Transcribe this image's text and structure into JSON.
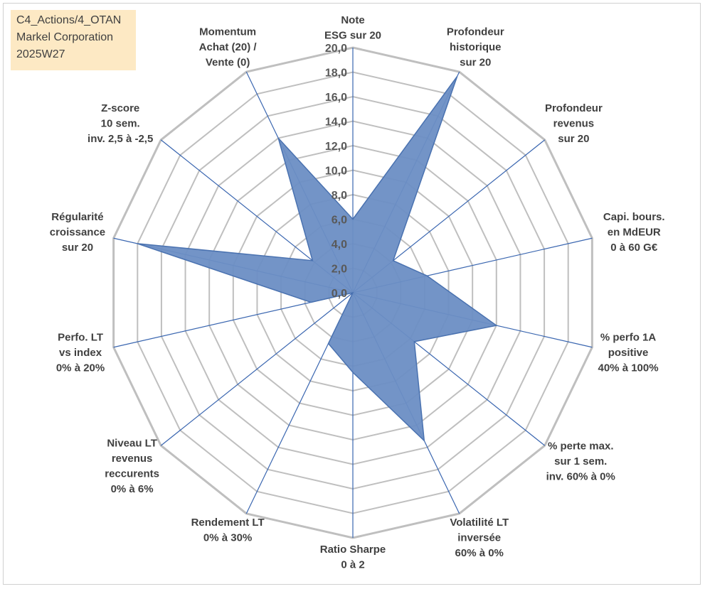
{
  "info_box": {
    "line1": "C4_Actions/4_OTAN",
    "line2": "Markel Corporation",
    "line3": "2025W27"
  },
  "chart_data": {
    "type": "radar",
    "rlim": [
      0,
      20
    ],
    "ticks": [
      "0,0",
      "2,0",
      "4,0",
      "6,0",
      "8,0",
      "10,0",
      "12,0",
      "14,0",
      "16,0",
      "18,0",
      "20,0"
    ],
    "grid": true,
    "axes": [
      {
        "lines": [
          "Note",
          "ESG sur 20"
        ]
      },
      {
        "lines": [
          "Profondeur",
          "historique",
          "sur 20"
        ]
      },
      {
        "lines": [
          "Profondeur",
          "revenus",
          "sur 20"
        ]
      },
      {
        "lines": [
          "Capi. bours.",
          "en MdEUR",
          "0 à 60 G€"
        ]
      },
      {
        "lines": [
          "% perfo 1A",
          "positive",
          "40% à 100%"
        ]
      },
      {
        "lines": [
          "% perte max.",
          "sur 1 sem.",
          "inv. 60% à 0%"
        ]
      },
      {
        "lines": [
          "Volatilité LT",
          "inversée",
          "60% à 0%"
        ]
      },
      {
        "lines": [
          "Ratio Sharpe",
          "0 à 2"
        ]
      },
      {
        "lines": [
          "Rendement LT",
          "0% à 30%"
        ]
      },
      {
        "lines": [
          "Niveau LT",
          "revenus",
          "reccurents",
          "0% à 6%"
        ]
      },
      {
        "lines": [
          "Perfo. LT",
          "vs index",
          "0% à 20%"
        ]
      },
      {
        "lines": [
          "Régularité",
          "croissance",
          "sur 20"
        ]
      },
      {
        "lines": [
          "Z-score",
          "10 sem.",
          "inv. 2,5 à -2,5"
        ]
      },
      {
        "lines": [
          "Momentum",
          "Achat (20) /",
          "Vente (0)"
        ]
      }
    ],
    "values": [
      6.0,
      19.6,
      4.2,
      6.2,
      12.0,
      6.4,
      13.4,
      6.5,
      4.6,
      0.0,
      3.5,
      18.0,
      4.2,
      14.0
    ],
    "series_color": "#4a72b0",
    "series_fill": "#6b8ec4",
    "grid_color": "#bfbfbf",
    "spoke_color": "#3a66b0"
  }
}
